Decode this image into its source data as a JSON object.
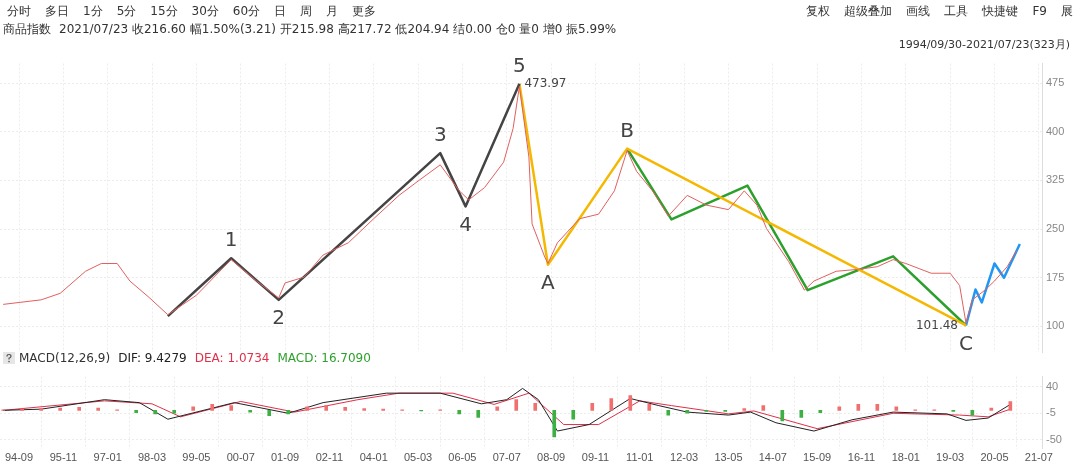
{
  "chart_data": [
    {
      "type": "other",
      "annotations": [
        "分时",
        "多日",
        "1分",
        "5分",
        "15分",
        "30分",
        "60分",
        "日",
        "周",
        "月",
        "更多",
        "复权",
        "超级叠加",
        "画线",
        "工具",
        "快捷键",
        "F9",
        "展"
      ]
    },
    {
      "type": "line",
      "title": "商品指数",
      "subtitle": "2021/07/23 收216.60 幅1.50%(3.21) 开215.98 高217.72 低204.94 结0.00 仓0 量0 增0 振5.99%",
      "xlim": [
        "1994-03",
        "2021-08"
      ],
      "ylim": [
        60,
        505
      ],
      "yticks": [
        100,
        175,
        250,
        325,
        400,
        475
      ],
      "xticks": [
        {
          "value": "1994-09",
          "label": null
        },
        {
          "value": "1995-11",
          "label": null
        },
        {
          "value": "1997-01",
          "label": null
        },
        {
          "value": "1998-03",
          "label": null
        },
        {
          "value": "1999-05",
          "label": null
        },
        {
          "value": "2000-07",
          "label": null
        },
        {
          "value": "2001-09",
          "label": null
        },
        {
          "value": "2002-11",
          "label": null
        },
        {
          "value": "2004-01",
          "label": null
        },
        {
          "value": "2005-03",
          "label": null
        },
        {
          "value": "2006-05",
          "label": null
        },
        {
          "value": "2007-07",
          "label": null
        },
        {
          "value": "2008-09",
          "label": null
        },
        {
          "value": "2009-11",
          "label": null
        },
        {
          "value": "2011-01",
          "label": null
        },
        {
          "value": "2012-03",
          "label": null
        },
        {
          "value": "2013-05",
          "label": null
        },
        {
          "value": "2014-07",
          "label": null
        },
        {
          "value": "2015-09",
          "label": null
        },
        {
          "value": "2016-11",
          "label": null
        },
        {
          "value": "2018-01",
          "label": null
        },
        {
          "value": "2019-03",
          "label": null
        },
        {
          "value": "2020-05",
          "label": null
        },
        {
          "value": "2021-07",
          "label": null
        }
      ],
      "grid": true,
      "tick_labels": "y",
      "series": [
        {
          "color": "#e06060",
          "x": [
            "1994-04",
            "1995-04",
            "1995-10",
            "1996-06",
            "1996-11",
            "1997-04",
            "1997-08",
            "1998-02",
            "1998-08",
            "1999-05",
            "2000-04",
            "2000-12",
            "2001-07",
            "2001-09",
            "2002-03",
            "2002-09",
            "2003-05",
            "2004-01",
            "2004-09",
            "2005-03",
            "2005-10",
            "2006-04",
            "2006-07",
            "2006-12",
            "2007-06",
            "2007-09",
            "2007-11",
            "2008-02",
            "2008-03",
            "2008-07",
            "2008-08",
            "2008-11",
            "2009-06",
            "2009-12",
            "2010-05",
            "2010-09",
            "2010-12",
            "2011-05",
            "2011-10",
            "2012-04",
            "2012-10",
            "2013-05",
            "2013-10",
            "2014-02",
            "2014-05",
            "2014-12",
            "2015-05",
            "2015-08",
            "2016-03",
            "2016-10",
            "2017-04",
            "2017-09",
            "2018-01",
            "2018-09",
            "2019-03",
            "2019-06",
            "2019-08",
            "2019-10",
            "2020-02",
            "2020-05",
            "2020-09",
            "2020-12"
          ],
          "values": [
            134,
            141,
            151,
            185,
            197,
            197,
            170,
            145,
            118,
            148,
            203,
            170,
            144,
            167,
            176,
            210,
            229,
            266,
            302,
            324,
            349,
            309,
            295,
            314,
            353,
            405,
            470,
            361,
            258,
            207,
            197,
            229,
            266,
            273,
            309,
            371,
            339,
            309,
            270,
            302,
            287,
            280,
            309,
            287,
            251,
            200,
            156,
            170,
            185,
            188,
            192,
            203,
            197,
            182,
            182,
            163,
            105,
            141,
            156,
            170,
            192,
            217
          ]
        },
        {
          "color": "#444444",
          "x": [
            "1998-08",
            "2000-04",
            "2001-07",
            "2005-10",
            "2006-06",
            "2007-11"
          ],
          "values": [
            116,
            205,
            141,
            367,
            285,
            473.97
          ]
        },
        {
          "color": "#f5b800",
          "x": [
            "2007-11",
            "2008-08",
            "2010-09",
            "2019-08"
          ],
          "values": [
            473.97,
            195,
            374,
            101.48
          ]
        },
        {
          "color": "#2ca02c",
          "x": [
            "2010-09",
            "2011-11",
            "2013-11",
            "2015-06",
            "2017-09",
            "2019-08"
          ],
          "values": [
            374,
            265,
            317,
            156,
            208,
            101.48
          ]
        },
        {
          "color": "#2196f3",
          "x": [
            "2019-08",
            "2019-11",
            "2020-01",
            "2020-05",
            "2020-08",
            "2021-01"
          ],
          "values": [
            101.48,
            157,
            137,
            197,
            175,
            227
          ]
        }
      ],
      "annotations": [
        "1994/09/30-2021/07/23(323月)",
        {
          "text": "1",
          "x": "2000-04",
          "y": 205
        },
        {
          "text": "2",
          "x": "2001-07",
          "y": 141
        },
        {
          "text": "3",
          "x": "2005-10",
          "y": 367
        },
        {
          "text": "4",
          "x": "2006-06",
          "y": 285
        },
        {
          "text": "5",
          "x": "2007-11",
          "y": 473.97
        },
        {
          "text": "473.97",
          "x": "2007-11",
          "y": 473.97
        },
        {
          "text": "A",
          "x": "2008-08",
          "y": 195
        },
        {
          "text": "B",
          "x": "2010-09",
          "y": 374
        },
        {
          "text": "101.48",
          "x": "2019-08",
          "y": 101.48
        },
        {
          "text": "C",
          "x": "2019-08",
          "y": 101.48
        }
      ]
    },
    {
      "type": "line",
      "title": "MACD(12,26,9)",
      "legend": "top left",
      "grid": true,
      "xlim": [
        "1994-03",
        "2021-08"
      ],
      "ylim": [
        -65,
        57
      ],
      "yticks": [
        40,
        -5,
        -50
      ],
      "xticks": [
        {
          "value": "1994-09",
          "label": "94-09"
        },
        {
          "value": "1995-11",
          "label": "95-11"
        },
        {
          "value": "1997-01",
          "label": "97-01"
        },
        {
          "value": "1998-03",
          "label": "98-03"
        },
        {
          "value": "1999-05",
          "label": "99-05"
        },
        {
          "value": "2000-07",
          "label": "00-07"
        },
        {
          "value": "2001-09",
          "label": "01-09"
        },
        {
          "value": "2002-11",
          "label": "02-11"
        },
        {
          "value": "2004-01",
          "label": "04-01"
        },
        {
          "value": "2005-03",
          "label": "05-03"
        },
        {
          "value": "2006-05",
          "label": "06-05"
        },
        {
          "value": "2007-07",
          "label": "07-07"
        },
        {
          "value": "2008-09",
          "label": "08-09"
        },
        {
          "value": "2009-11",
          "label": "09-11"
        },
        {
          "value": "2011-01",
          "label": "11-01"
        },
        {
          "value": "2012-03",
          "label": "12-03"
        },
        {
          "value": "2013-05",
          "label": "13-05"
        },
        {
          "value": "2014-07",
          "label": "14-07"
        },
        {
          "value": "2015-09",
          "label": "15-09"
        },
        {
          "value": "2016-11",
          "label": "16-11"
        },
        {
          "value": "2018-01",
          "label": "18-01"
        },
        {
          "value": "2019-03",
          "label": "19-03"
        },
        {
          "value": "2020-05",
          "label": "20-05"
        },
        {
          "value": "2021-07",
          "label": "21-07"
        }
      ],
      "series": [
        {
          "name": "DIF: 9.4279",
          "color": "#222222",
          "x": [
            "1994-04",
            "1995-04",
            "1996-12",
            "1997-11",
            "1998-08",
            "2000-05",
            "2001-10",
            "2002-09",
            "2004-05",
            "2005-10",
            "2006-11",
            "2007-07",
            "2007-12",
            "2008-05",
            "2008-11",
            "2009-09",
            "2010-10",
            "2011-07",
            "2012-04",
            "2013-05",
            "2013-12",
            "2014-08",
            "2015-08",
            "2016-08",
            "2017-09",
            "2019-02",
            "2019-08",
            "2020-03",
            "2020-10"
          ],
          "values": [
            0,
            2,
            18,
            13,
            -15,
            13,
            -5,
            13,
            29,
            29,
            11,
            18,
            37,
            18,
            -35,
            -24,
            20,
            8,
            -3,
            -8,
            -3,
            -21,
            -35,
            -16,
            -3,
            -6,
            -17,
            -13,
            10
          ]
        },
        {
          "name": "DEA: 1.0734",
          "color": "#e0304a",
          "x": [
            "1994-04",
            "1996-12",
            "1998-03",
            "1998-12",
            "2000-07",
            "2001-12",
            "2003-08",
            "2004-09",
            "2006-02",
            "2007-03",
            "2008-02",
            "2009-01",
            "2009-12",
            "2011-01",
            "2011-11",
            "2013-05",
            "2014-01",
            "2015-09",
            "2017-09",
            "2019-06",
            "2020-03",
            "2020-10"
          ],
          "values": [
            0,
            16,
            11,
            -11,
            15,
            -3,
            18,
            29,
            29,
            10,
            29,
            -24,
            -24,
            16,
            8,
            -6,
            -1,
            -31,
            -5,
            -8,
            -11,
            2
          ]
        },
        {
          "name": "MACD: 16.7090",
          "type": "bar",
          "color": "#2ca02c",
          "x": [
            "1994-04",
            "1994-10",
            "1995-04",
            "1995-10",
            "1996-04",
            "1996-10",
            "1997-04",
            "1997-10",
            "1998-04",
            "1998-10",
            "1999-04",
            "1999-10",
            "2000-04",
            "2000-10",
            "2001-04",
            "2001-10",
            "2002-04",
            "2002-10",
            "2003-04",
            "2003-10",
            "2004-04",
            "2004-10",
            "2005-04",
            "2005-10",
            "2006-04",
            "2006-10",
            "2007-04",
            "2007-10",
            "2008-04",
            "2008-10",
            "2009-04",
            "2009-10",
            "2010-04",
            "2010-10",
            "2011-04",
            "2011-10",
            "2012-04",
            "2012-10",
            "2013-04",
            "2013-10",
            "2014-04",
            "2014-10",
            "2015-04",
            "2015-10",
            "2016-04",
            "2016-10",
            "2017-04",
            "2017-10",
            "2018-04",
            "2018-10",
            "2019-04",
            "2019-10",
            "2020-04",
            "2020-10"
          ],
          "values": [
            1,
            2,
            3,
            4,
            5,
            4,
            1,
            -4,
            -6,
            -5,
            6,
            10,
            8,
            -3,
            -9,
            -6,
            6,
            8,
            5,
            3,
            2,
            1,
            -1,
            1,
            -6,
            -12,
            6,
            18,
            12,
            -45,
            -15,
            12,
            20,
            25,
            10,
            -8,
            -5,
            -2,
            -2,
            3,
            8,
            -18,
            -12,
            -4,
            6,
            10,
            10,
            6,
            1,
            1,
            -2,
            -8,
            4,
            15
          ],
          "colors": [
            "#f07070",
            "#f07070",
            "#f07070",
            "#f07070",
            "#f07070",
            "#f07070",
            "#f07070",
            "#3cb043",
            "#3cb043",
            "#3cb043",
            "#f07070",
            "#f07070",
            "#f07070",
            "#3cb043",
            "#3cb043",
            "#3cb043",
            "#f07070",
            "#f07070",
            "#f07070",
            "#f07070",
            "#f07070",
            "#f07070",
            "#3cb043",
            "#f07070",
            "#3cb043",
            "#3cb043",
            "#f07070",
            "#f07070",
            "#f07070",
            "#3cb043",
            "#3cb043",
            "#f07070",
            "#f07070",
            "#f07070",
            "#f07070",
            "#3cb043",
            "#3cb043",
            "#3cb043",
            "#3cb043",
            "#f07070",
            "#f07070",
            "#3cb043",
            "#3cb043",
            "#3cb043",
            "#f07070",
            "#f07070",
            "#f07070",
            "#f07070",
            "#f07070",
            "#f07070",
            "#3cb043",
            "#3cb043",
            "#f07070",
            "#f07070"
          ]
        }
      ]
    }
  ]
}
